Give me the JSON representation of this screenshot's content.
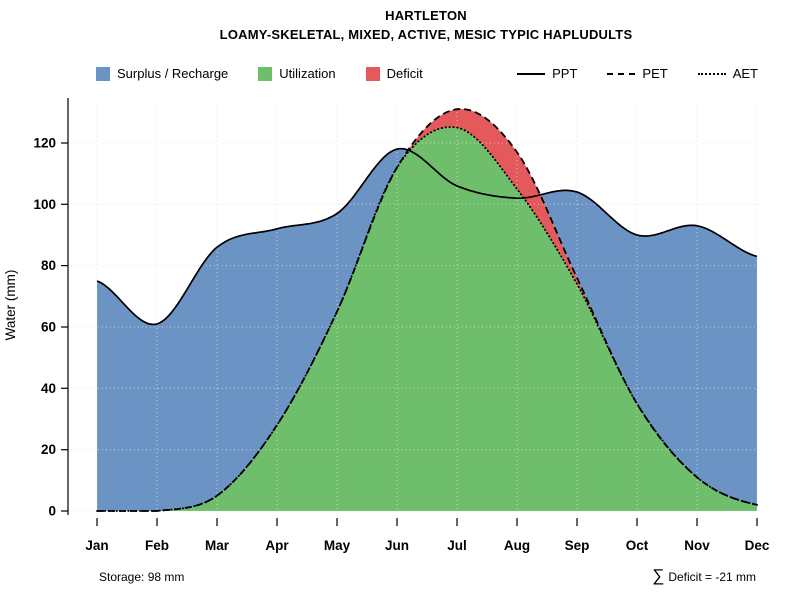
{
  "title": "HARTLETON",
  "subtitle": "LOAMY-SKELETAL, MIXED, ACTIVE, MESIC TYPIC HAPLUDULTS",
  "legend": {
    "surplus": "Surplus / Recharge",
    "utilization": "Utilization",
    "deficit": "Deficit",
    "ppt": "PPT",
    "pet": "PET",
    "aet": "AET"
  },
  "annotations": {
    "storage": "Storage: 98 mm",
    "deficit_sigma": "∑",
    "deficit_text": "Deficit = -21 mm"
  },
  "colors": {
    "surplus": "#6B93C4",
    "utilization": "#6FBE6B",
    "deficit": "#E4595B",
    "line": "#000000",
    "grid_under": "#C9C9C9",
    "grid_over": "rgba(255,255,255,0.55)"
  },
  "chart_data": {
    "type": "area",
    "title": "HARTLETON",
    "subtitle": "LOAMY-SKELETAL, MIXED, ACTIVE, MESIC TYPIC HAPLUDULTS",
    "categories": [
      "Jan",
      "Feb",
      "Mar",
      "Apr",
      "May",
      "Jun",
      "Jul",
      "Aug",
      "Sep",
      "Oct",
      "Nov",
      "Dec"
    ],
    "series": [
      {
        "name": "PPT",
        "line_style": "solid",
        "values": [
          75,
          61,
          86,
          92,
          97,
          118,
          106,
          102,
          104,
          90,
          93,
          83
        ]
      },
      {
        "name": "PET",
        "line_style": "dashed",
        "values": [
          0,
          0,
          5,
          28,
          65,
          112,
          131,
          117,
          76,
          35,
          11,
          2
        ]
      },
      {
        "name": "AET",
        "line_style": "dotted",
        "values": [
          0,
          0,
          5,
          28,
          65,
          112,
          125,
          105,
          74,
          35,
          11,
          2
        ]
      }
    ],
    "areas": [
      {
        "name": "Surplus / Recharge",
        "between": [
          "PPT",
          "PET"
        ],
        "color_key": "surplus"
      },
      {
        "name": "Utilization",
        "between": [
          "AET",
          "baseline"
        ],
        "color_key": "utilization"
      },
      {
        "name": "Deficit",
        "between": [
          "PET",
          "AET"
        ],
        "color_key": "deficit"
      }
    ],
    "ylabel": "Water (mm)",
    "yticks": [
      0,
      20,
      40,
      60,
      80,
      100,
      120
    ],
    "ylim": [
      0,
      135
    ],
    "grid": true,
    "legend_position": "top",
    "storage_mm": 98,
    "deficit_total_mm": -21
  }
}
